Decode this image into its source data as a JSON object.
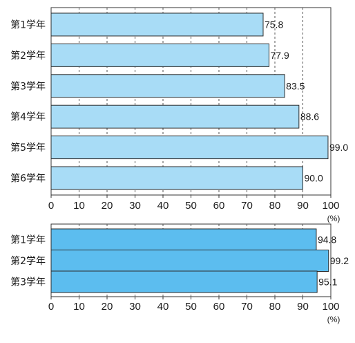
{
  "chart_data": [
    {
      "type": "bar",
      "orientation": "horizontal",
      "categories": [
        "第1学年",
        "第2学年",
        "第3学年",
        "第4学年",
        "第5学年",
        "第6学年"
      ],
      "values": [
        75.8,
        77.9,
        83.5,
        88.6,
        99.0,
        90.0
      ],
      "value_labels": [
        "75.8",
        "77.9",
        "83.5",
        "88.6",
        "99.0",
        "90.0"
      ],
      "x_ticks": [
        "0",
        "10",
        "20",
        "30",
        "40",
        "50",
        "60",
        "70",
        "80",
        "90",
        "100"
      ],
      "xlim": [
        0,
        100
      ],
      "unit": "(%)",
      "grid": "dashed vertical",
      "bar_color": "#a8dcf6"
    },
    {
      "type": "bar",
      "orientation": "horizontal",
      "categories": [
        "第1学年",
        "第2学年",
        "第3学年"
      ],
      "values": [
        94.8,
        99.2,
        95.1
      ],
      "value_labels": [
        "94.8",
        "99.2",
        "95.1"
      ],
      "x_ticks": [
        "0",
        "10",
        "20",
        "30",
        "40",
        "50",
        "60",
        "70",
        "80",
        "90",
        "100"
      ],
      "xlim": [
        0,
        100
      ],
      "unit": "(%)",
      "grid": "dashed vertical",
      "bar_color": "#5cbdef"
    }
  ]
}
